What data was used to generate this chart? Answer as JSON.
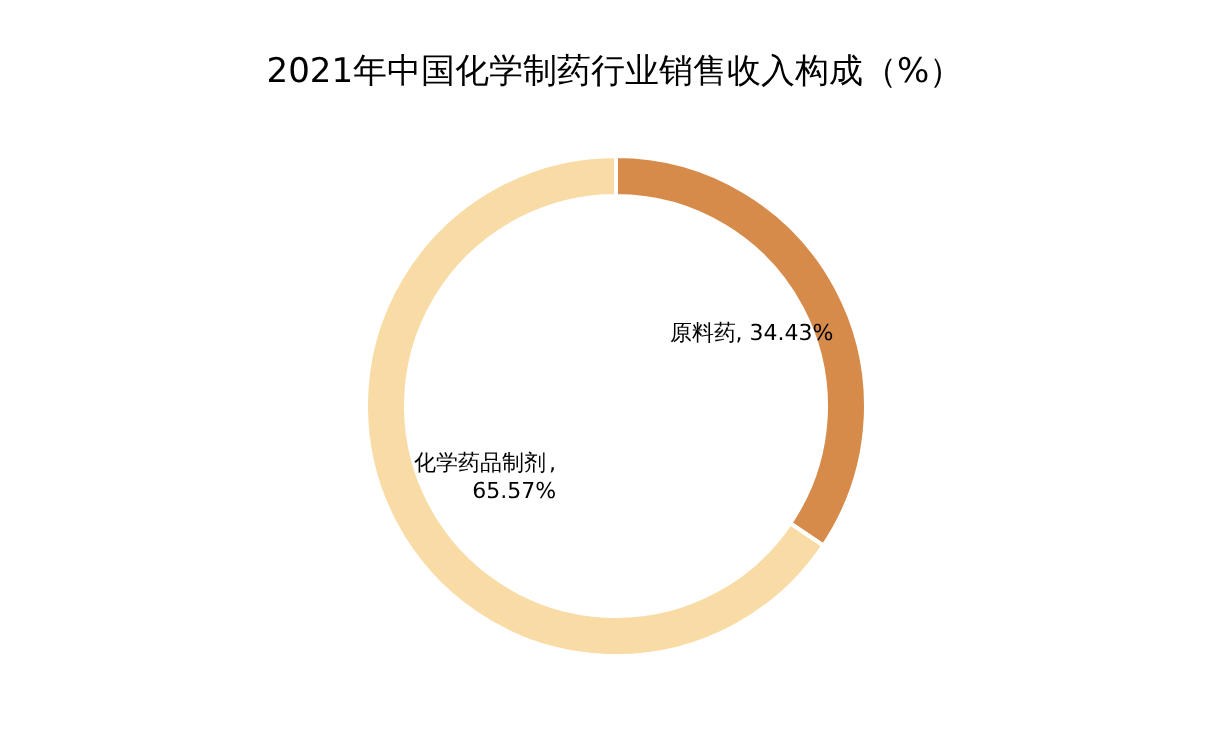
{
  "chart_data": {
    "type": "donut",
    "title": "2021年中国化学制药行业销售收入构成（%）",
    "categories": [
      "原料药",
      "化学药品制剂"
    ],
    "values": [
      34.43,
      65.57
    ],
    "colors": [
      "#d68b4b",
      "#f8dba5"
    ],
    "value_labels": [
      ", 34.43%",
      ",\n65.57%"
    ],
    "legend": false
  }
}
